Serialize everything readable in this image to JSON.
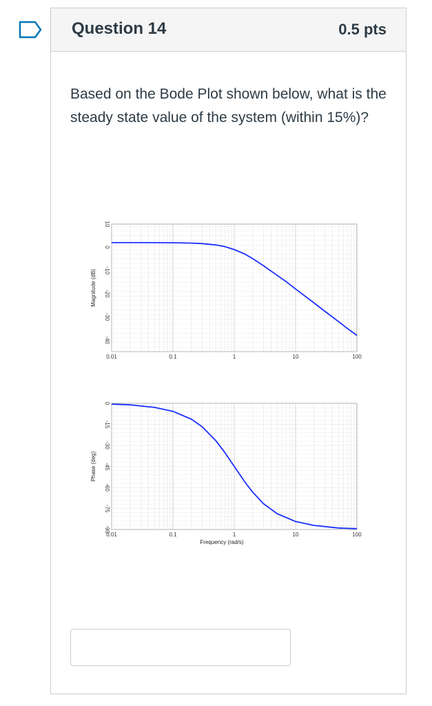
{
  "question": {
    "title": "Question 14",
    "points": "0.5 pts",
    "text": "Based on the Bode Plot shown below, what is the steady state value of the system (within 15%)?",
    "answer_value": ""
  },
  "icons": {
    "flag": "bookmark-flag-icon"
  },
  "colors": {
    "curve": "#1a2fff",
    "title": "#2d3b45",
    "header_bg": "#f5f5f5"
  },
  "chart_data": [
    {
      "type": "line",
      "title": "",
      "xlabel": "",
      "ylabel": "Magnitude (dB)",
      "xscale": "log",
      "xlim": [
        0.01,
        100
      ],
      "ylim": [
        -45,
        10
      ],
      "xticks": [
        "0.01",
        "0.1",
        "1",
        "10",
        "100"
      ],
      "yticks": [
        "10",
        "0",
        "-10",
        "-20",
        "-30",
        "-40"
      ],
      "grid": true,
      "series": [
        {
          "x": [
            0.01,
            0.03,
            0.1,
            0.2,
            0.3,
            0.5,
            0.7,
            1,
            1.5,
            2,
            3,
            5,
            7,
            10,
            20,
            30,
            50,
            70,
            100
          ],
          "values": [
            2,
            2,
            1.95,
            1.8,
            1.6,
            1.0,
            0.3,
            -1.0,
            -3.0,
            -4.9,
            -8.0,
            -12.1,
            -14.8,
            -18.0,
            -24.0,
            -27.6,
            -32.0,
            -35.0,
            -38.0
          ]
        }
      ]
    },
    {
      "type": "line",
      "title": "",
      "xlabel": "Frequency (rad/s)",
      "ylabel": "Phase (deg)",
      "xscale": "log",
      "xlim": [
        0.01,
        100
      ],
      "ylim": [
        -90,
        0
      ],
      "xticks": [
        "0.01",
        "0.1",
        "1",
        "10",
        "100"
      ],
      "yticks": [
        "0",
        "-15",
        "-30",
        "-45",
        "-60",
        "-75",
        "-90"
      ],
      "grid": true,
      "series": [
        {
          "x": [
            0.01,
            0.02,
            0.05,
            0.1,
            0.2,
            0.3,
            0.5,
            0.7,
            1,
            1.5,
            2,
            3,
            5,
            10,
            20,
            50,
            100
          ],
          "values": [
            -0.6,
            -1.1,
            -2.9,
            -5.7,
            -11.3,
            -16.7,
            -26.6,
            -35.0,
            -45.0,
            -56.3,
            -63.4,
            -71.6,
            -78.7,
            -84.3,
            -87.1,
            -88.9,
            -89.4
          ]
        }
      ]
    }
  ]
}
